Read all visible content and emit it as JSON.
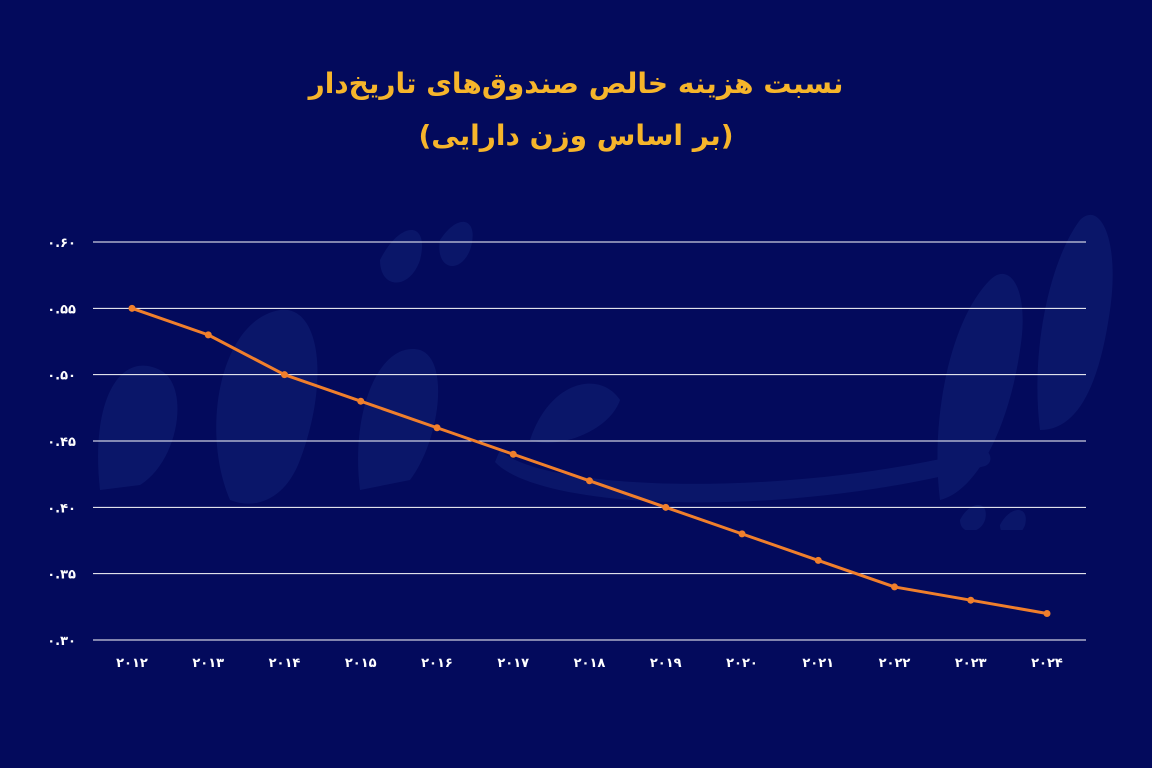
{
  "colors": {
    "background": "#030a5c",
    "title": "#f6b52b",
    "line": "#f07f2c",
    "grid": "#ffffff",
    "watermark": "#2c4da8"
  },
  "chart_data": {
    "type": "line",
    "title": "نسبت هزینه خالص صندوق‌های تاریخ‌دار",
    "subtitle": "(بر اساس وزن دارایی)",
    "xlabel": "",
    "ylabel": "",
    "x": [
      "۲۰۱۲",
      "۲۰۱۳",
      "۲۰۱۴",
      "۲۰۱۵",
      "۲۰۱۶",
      "۲۰۱۷",
      "۲۰۱۸",
      "۲۰۱۹",
      "۲۰۲۰",
      "۲۰۲۱",
      "۲۰۲۲",
      "۲۰۲۳",
      "۲۰۲۴"
    ],
    "series": [
      {
        "values": [
          0.55,
          0.53,
          0.5,
          0.48,
          0.46,
          0.44,
          0.42,
          0.4,
          0.38,
          0.36,
          0.34,
          0.33,
          0.32
        ]
      }
    ],
    "ylim": [
      0.3,
      0.6
    ],
    "yticks": [
      0.3,
      0.35,
      0.4,
      0.45,
      0.5,
      0.55,
      0.6
    ],
    "ytick_labels": [
      "۰.۳۰",
      "۰.۳۵",
      "۰.۴۰",
      "۰.۴۵",
      "۰.۵۰",
      "۰.۵۵",
      "۰.۶۰"
    ],
    "grid": true,
    "legend": "none"
  }
}
